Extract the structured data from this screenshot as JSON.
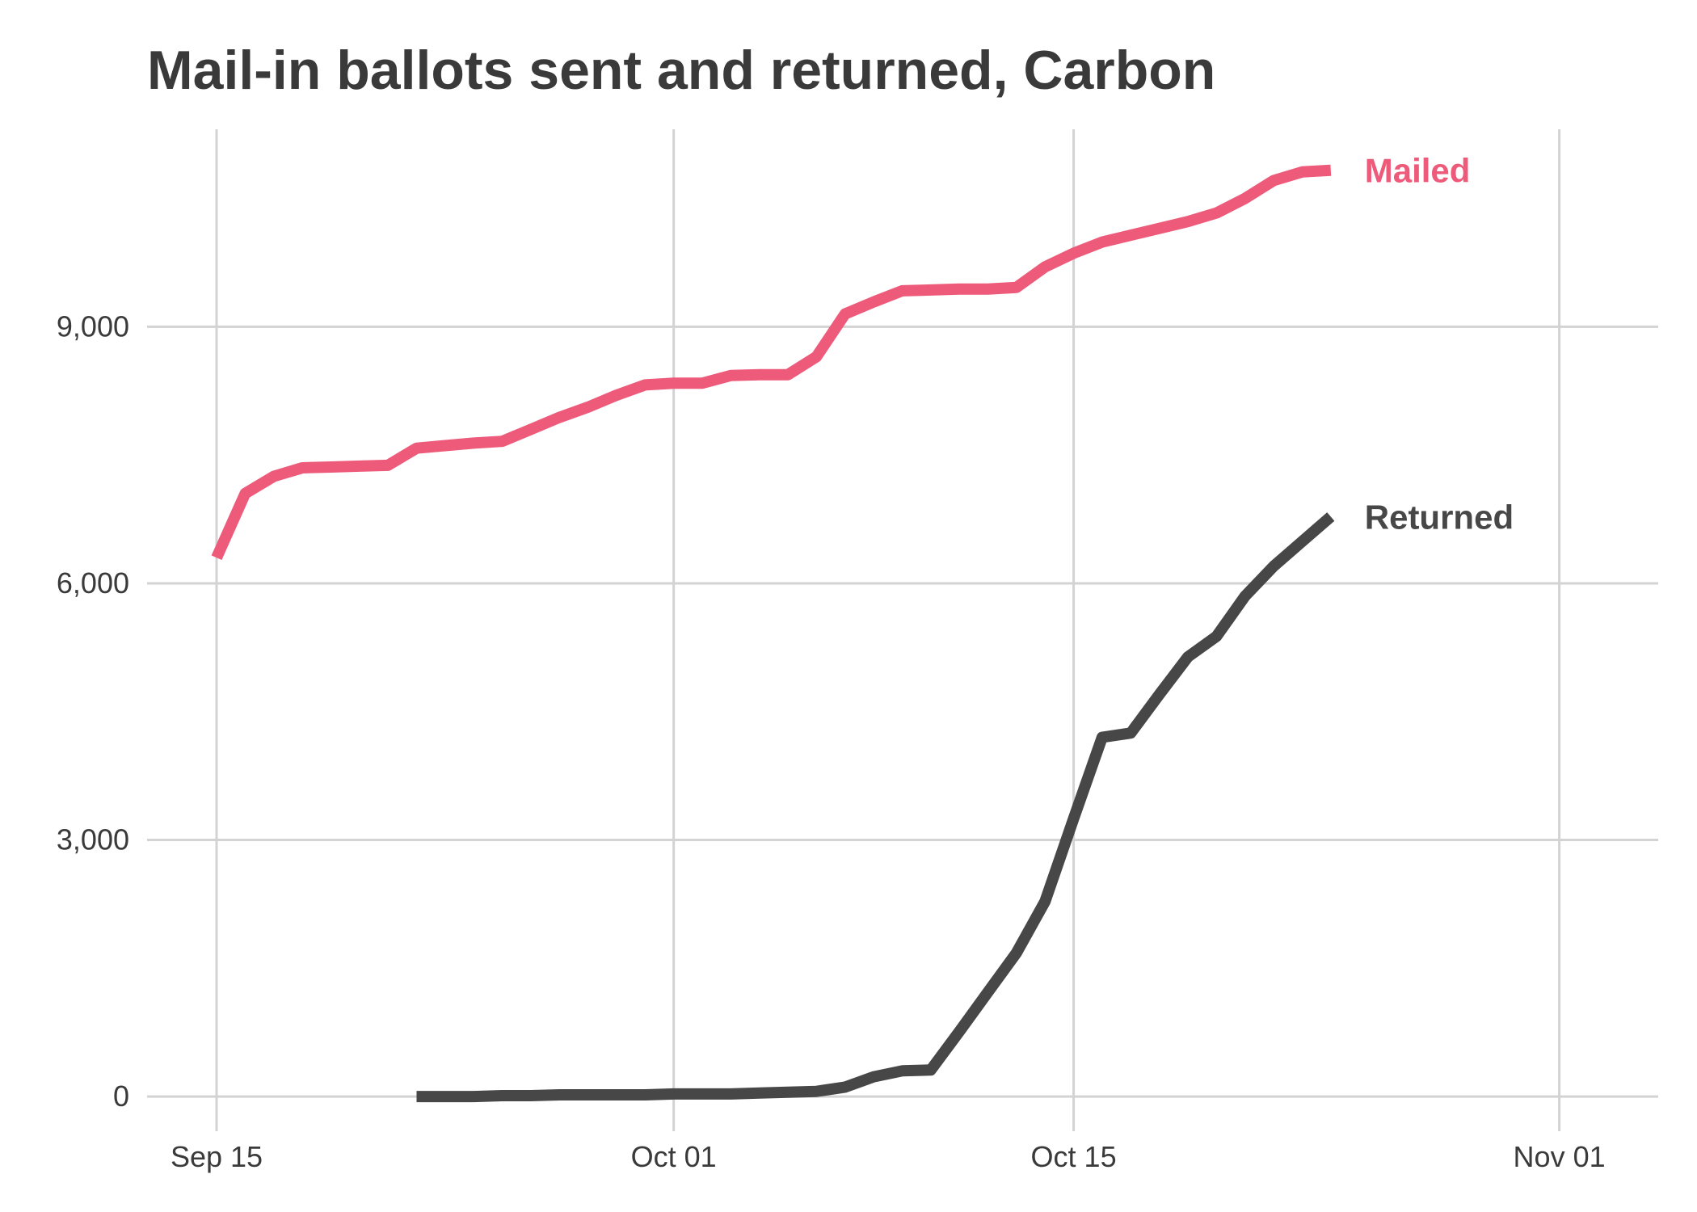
{
  "chart_data": {
    "type": "line",
    "title": "Mail-in ballots sent and returned, Carbon",
    "xlabel": "",
    "ylabel": "",
    "x_axis": {
      "kind": "date",
      "range": [
        "2020-09-15",
        "2020-11-05"
      ],
      "ticks": [
        {
          "date": "2020-09-15",
          "label": "Sep 15"
        },
        {
          "date": "2020-10-01",
          "label": "Oct 01"
        },
        {
          "date": "2020-10-15",
          "label": "Oct 15"
        },
        {
          "date": "2020-11-01",
          "label": "Nov 01"
        }
      ]
    },
    "y_axis": {
      "range": [
        -500,
        11800
      ],
      "ticks": [
        {
          "value": 0,
          "label": "0"
        },
        {
          "value": 3000,
          "label": "3,000"
        },
        {
          "value": 6000,
          "label": "6,000"
        },
        {
          "value": 9000,
          "label": "9,000"
        }
      ]
    },
    "grid": true,
    "legend": "direct labels at line ends",
    "series": [
      {
        "name": "Mailed",
        "color": "#ee5a7a",
        "points": [
          [
            "2020-09-15",
            6300
          ],
          [
            "2020-09-16",
            7050
          ],
          [
            "2020-09-17",
            7250
          ],
          [
            "2020-09-18",
            7350
          ],
          [
            "2020-09-19",
            7360
          ],
          [
            "2020-09-20",
            7370
          ],
          [
            "2020-09-21",
            7380
          ],
          [
            "2020-09-22",
            7580
          ],
          [
            "2020-09-23",
            7610
          ],
          [
            "2020-09-24",
            7640
          ],
          [
            "2020-09-25",
            7660
          ],
          [
            "2020-09-26",
            7800
          ],
          [
            "2020-09-27",
            7940
          ],
          [
            "2020-09-28",
            8060
          ],
          [
            "2020-09-29",
            8200
          ],
          [
            "2020-09-30",
            8320
          ],
          [
            "2020-10-01",
            8340
          ],
          [
            "2020-10-02",
            8340
          ],
          [
            "2020-10-03",
            8430
          ],
          [
            "2020-10-04",
            8440
          ],
          [
            "2020-10-05",
            8440
          ],
          [
            "2020-10-06",
            8650
          ],
          [
            "2020-10-07",
            9150
          ],
          [
            "2020-10-08",
            9290
          ],
          [
            "2020-10-09",
            9420
          ],
          [
            "2020-10-10",
            9430
          ],
          [
            "2020-10-11",
            9440
          ],
          [
            "2020-10-12",
            9440
          ],
          [
            "2020-10-13",
            9460
          ],
          [
            "2020-10-14",
            9700
          ],
          [
            "2020-10-15",
            9860
          ],
          [
            "2020-10-16",
            9990
          ],
          [
            "2020-10-17",
            10070
          ],
          [
            "2020-10-18",
            10150
          ],
          [
            "2020-10-19",
            10230
          ],
          [
            "2020-10-20",
            10330
          ],
          [
            "2020-10-21",
            10500
          ],
          [
            "2020-10-22",
            10710
          ],
          [
            "2020-10-23",
            10810
          ],
          [
            "2020-10-24",
            10830
          ]
        ]
      },
      {
        "name": "Returned",
        "color": "#474747",
        "points": [
          [
            "2020-09-22",
            0
          ],
          [
            "2020-09-23",
            0
          ],
          [
            "2020-09-24",
            0
          ],
          [
            "2020-09-25",
            10
          ],
          [
            "2020-09-26",
            10
          ],
          [
            "2020-09-27",
            20
          ],
          [
            "2020-09-28",
            20
          ],
          [
            "2020-09-29",
            20
          ],
          [
            "2020-09-30",
            20
          ],
          [
            "2020-10-01",
            30
          ],
          [
            "2020-10-02",
            30
          ],
          [
            "2020-10-03",
            30
          ],
          [
            "2020-10-04",
            40
          ],
          [
            "2020-10-05",
            50
          ],
          [
            "2020-10-06",
            60
          ],
          [
            "2020-10-07",
            110
          ],
          [
            "2020-10-08",
            230
          ],
          [
            "2020-10-09",
            300
          ],
          [
            "2020-10-10",
            310
          ],
          [
            "2020-10-11",
            760
          ],
          [
            "2020-10-12",
            1220
          ],
          [
            "2020-10-13",
            1680
          ],
          [
            "2020-10-14",
            2280
          ],
          [
            "2020-10-15",
            3250
          ],
          [
            "2020-10-16",
            4200
          ],
          [
            "2020-10-17",
            4250
          ],
          [
            "2020-10-18",
            4700
          ],
          [
            "2020-10-19",
            5140
          ],
          [
            "2020-10-20",
            5380
          ],
          [
            "2020-10-21",
            5850
          ],
          [
            "2020-10-22",
            6200
          ],
          [
            "2020-10-23",
            6490
          ],
          [
            "2020-10-24",
            6780
          ]
        ]
      }
    ]
  }
}
